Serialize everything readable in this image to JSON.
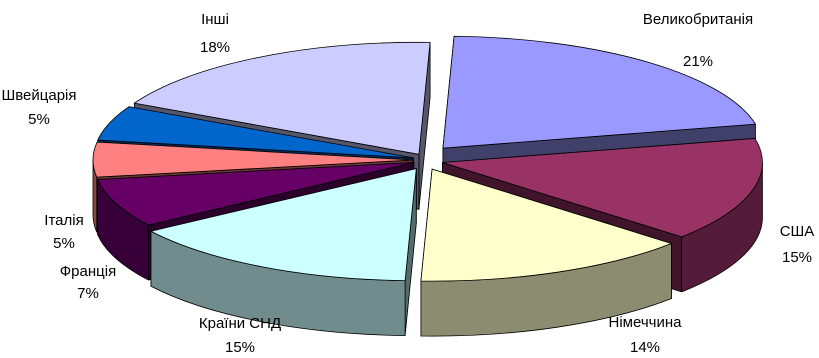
{
  "chart_data": {
    "type": "pie",
    "style": "3d-exploded",
    "title": "",
    "legend": "none",
    "slices": [
      {
        "name": "Великобританія",
        "label": "21%",
        "value": 21,
        "color": "#9999ff"
      },
      {
        "name": "США",
        "label": "15%",
        "value": 15,
        "color": "#993366"
      },
      {
        "name": "Німеччина",
        "label": "14%",
        "value": 14,
        "color": "#ffffcc"
      },
      {
        "name": "Країни СНД",
        "label": "15%",
        "value": 15,
        "color": "#ccffff"
      },
      {
        "name": "Франція",
        "label": "7%",
        "value": 7,
        "color": "#660066"
      },
      {
        "name": "Італія",
        "label": "5%",
        "value": 5,
        "color": "#ff8080"
      },
      {
        "name": "Швейцарія",
        "label": "5%",
        "value": 5,
        "color": "#0066cc"
      },
      {
        "name": "Інші",
        "label": "18%",
        "value": 18,
        "color": "#ccccff"
      }
    ]
  }
}
